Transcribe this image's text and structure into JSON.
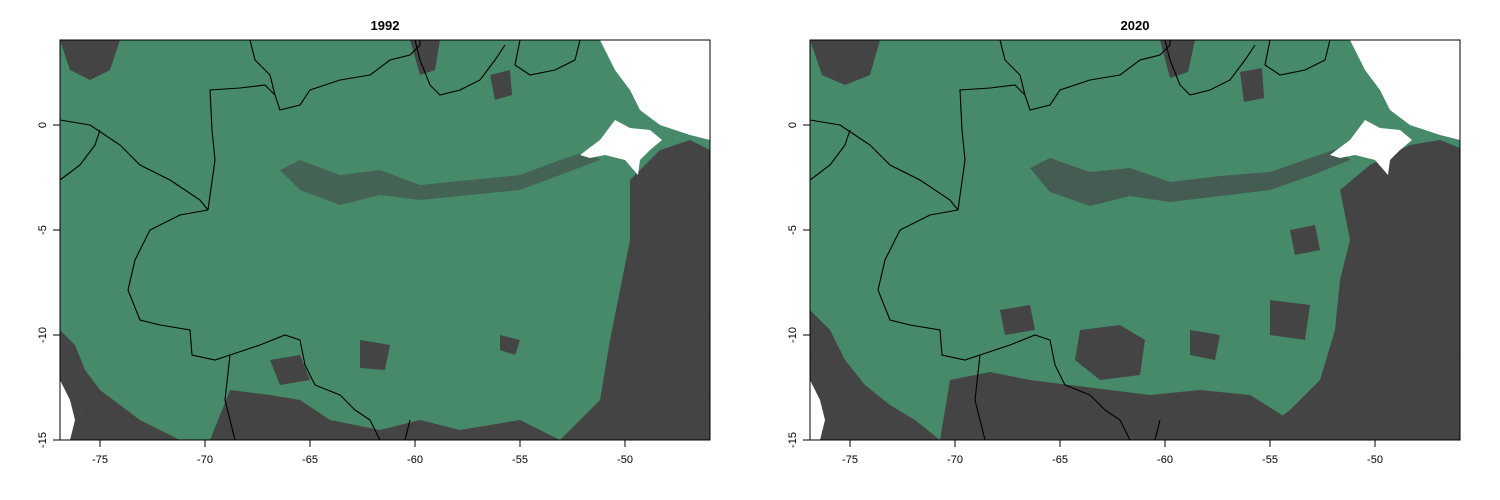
{
  "colors": {
    "forest": "#468A6A",
    "non_forest": "#444444",
    "water": "#ffffff",
    "border": "#000000"
  },
  "maps": [
    {
      "title": "1992"
    },
    {
      "title": "2020"
    }
  ],
  "axes": {
    "x_ticks": [
      "-75",
      "-70",
      "-65",
      "-60",
      "-55",
      "-50"
    ],
    "y_ticks": [
      "0",
      "-5",
      "-10",
      "-15"
    ],
    "x_range": [
      -77,
      -46
    ],
    "y_range": [
      -15,
      4
    ]
  }
}
